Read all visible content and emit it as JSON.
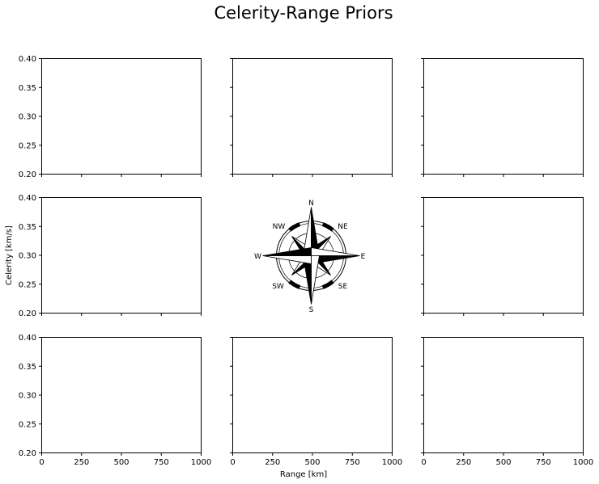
{
  "title": "Celerity-Range Priors",
  "chart_data": {
    "type": "scatter",
    "title": "Celerity-Range Priors",
    "xlabel": "Range [km]",
    "ylabel": "Celerity [km/s]",
    "xlim": [
      0,
      1000
    ],
    "ylim": [
      0.2,
      0.4
    ],
    "x_ticks": [
      0,
      250,
      500,
      750,
      1000
    ],
    "y_ticks": [
      0.2,
      0.25,
      0.3,
      0.35,
      0.4
    ],
    "x_tick_labels": [
      "0",
      "250",
      "500",
      "750",
      "1000"
    ],
    "y_tick_labels": [
      "0.20",
      "0.25",
      "0.30",
      "0.35",
      "0.40"
    ],
    "grid": false,
    "panels": [
      {
        "direction": "NW",
        "series": []
      },
      {
        "direction": "N",
        "series": []
      },
      {
        "direction": "NE",
        "series": []
      },
      {
        "direction": "W",
        "series": []
      },
      {
        "direction": "compass",
        "series": []
      },
      {
        "direction": "E",
        "series": []
      },
      {
        "direction": "SW",
        "series": []
      },
      {
        "direction": "S",
        "series": []
      },
      {
        "direction": "SE",
        "series": []
      }
    ],
    "compass_labels": [
      "N",
      "NE",
      "E",
      "SE",
      "S",
      "SW",
      "W",
      "NW"
    ]
  }
}
